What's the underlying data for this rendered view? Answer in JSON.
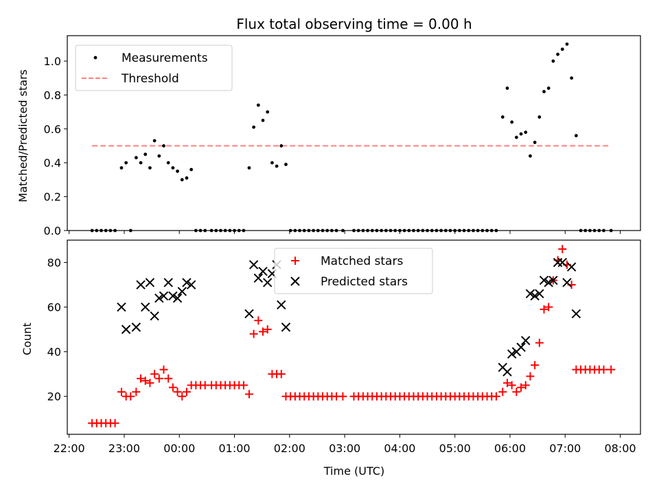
{
  "chart_data": [
    {
      "type": "scatter",
      "title": "Flux total observing time = 0.00 h",
      "ylabel": "Matched/Predicted stars",
      "ylim": [
        0,
        1.15
      ],
      "yticks": [
        0.0,
        0.2,
        0.4,
        0.6,
        0.8,
        1.0
      ],
      "ytick_labels": [
        "0.0",
        "0.2",
        "0.4",
        "0.6",
        "0.8",
        "1.0"
      ],
      "legend_position": "top-left",
      "grid": false,
      "series": [
        {
          "name": "Measurements",
          "color": "#000000",
          "marker": "dot",
          "points": [
            [
              "22:25",
              0
            ],
            [
              "22:30",
              0
            ],
            [
              "22:35",
              0
            ],
            [
              "22:40",
              0
            ],
            [
              "22:45",
              0
            ],
            [
              "22:50",
              0
            ],
            [
              "22:57",
              0.37
            ],
            [
              "23:02",
              0.4
            ],
            [
              "23:07",
              0
            ],
            [
              "23:13",
              0.43
            ],
            [
              "23:18",
              0.4
            ],
            [
              "23:23",
              0.45
            ],
            [
              "23:28",
              0.37
            ],
            [
              "23:33",
              0.53
            ],
            [
              "23:38",
              0.44
            ],
            [
              "23:43",
              0.5
            ],
            [
              "23:48",
              0.4
            ],
            [
              "23:53",
              0.37
            ],
            [
              "23:58",
              0.35
            ],
            [
              "00:03",
              0.3
            ],
            [
              "00:08",
              0.31
            ],
            [
              "00:13",
              0.36
            ],
            [
              "00:18",
              0
            ],
            [
              "00:23",
              0
            ],
            [
              "00:28",
              0
            ],
            [
              "00:35",
              0
            ],
            [
              "00:40",
              0
            ],
            [
              "00:45",
              0
            ],
            [
              "00:50",
              0
            ],
            [
              "00:55",
              0
            ],
            [
              "01:00",
              0
            ],
            [
              "01:05",
              0
            ],
            [
              "01:10",
              0
            ],
            [
              "01:16",
              0.37
            ],
            [
              "01:21",
              0.61
            ],
            [
              "01:26",
              0.74
            ],
            [
              "01:31",
              0.65
            ],
            [
              "01:36",
              0.7
            ],
            [
              "01:41",
              0.4
            ],
            [
              "01:46",
              0.38
            ],
            [
              "01:51",
              0.5
            ],
            [
              "01:56",
              0.39
            ],
            [
              "02:01",
              0
            ],
            [
              "02:06",
              0
            ],
            [
              "02:11",
              0
            ],
            [
              "02:16",
              0
            ],
            [
              "02:21",
              0
            ],
            [
              "02:26",
              0
            ],
            [
              "02:31",
              0
            ],
            [
              "02:36",
              0
            ],
            [
              "02:41",
              0
            ],
            [
              "02:46",
              0
            ],
            [
              "02:51",
              0
            ],
            [
              "02:58",
              0
            ],
            [
              "03:10",
              0
            ],
            [
              "03:15",
              0
            ],
            [
              "03:20",
              0
            ],
            [
              "03:25",
              0
            ],
            [
              "03:30",
              0
            ],
            [
              "03:35",
              0
            ],
            [
              "03:40",
              0
            ],
            [
              "03:45",
              0
            ],
            [
              "03:50",
              0
            ],
            [
              "03:55",
              0
            ],
            [
              "04:00",
              0
            ],
            [
              "04:05",
              0
            ],
            [
              "04:10",
              0
            ],
            [
              "04:15",
              0
            ],
            [
              "04:20",
              0
            ],
            [
              "04:25",
              0
            ],
            [
              "04:30",
              0
            ],
            [
              "04:35",
              0
            ],
            [
              "04:40",
              0
            ],
            [
              "04:45",
              0
            ],
            [
              "04:50",
              0
            ],
            [
              "04:55",
              0
            ],
            [
              "05:00",
              0
            ],
            [
              "05:05",
              0
            ],
            [
              "05:10",
              0
            ],
            [
              "05:15",
              0
            ],
            [
              "05:20",
              0
            ],
            [
              "05:25",
              0
            ],
            [
              "05:30",
              0
            ],
            [
              "05:35",
              0
            ],
            [
              "05:40",
              0
            ],
            [
              "05:45",
              0
            ],
            [
              "05:52",
              0.67
            ],
            [
              "05:57",
              0.84
            ],
            [
              "06:02",
              0.64
            ],
            [
              "06:07",
              0.55
            ],
            [
              "06:12",
              0.57
            ],
            [
              "06:17",
              0.58
            ],
            [
              "06:22",
              0.44
            ],
            [
              "06:27",
              0.52
            ],
            [
              "06:32",
              0.67
            ],
            [
              "06:37",
              0.82
            ],
            [
              "06:42",
              0.84
            ],
            [
              "06:47",
              1.0
            ],
            [
              "06:52",
              1.04
            ],
            [
              "06:57",
              1.07
            ],
            [
              "07:02",
              1.1
            ],
            [
              "07:07",
              0.9
            ],
            [
              "07:12",
              0.56
            ],
            [
              "07:17",
              0
            ],
            [
              "07:22",
              0
            ],
            [
              "07:27",
              0
            ],
            [
              "07:32",
              0
            ],
            [
              "07:37",
              0
            ],
            [
              "07:42",
              0
            ],
            [
              "07:50",
              0
            ]
          ]
        },
        {
          "name": "Threshold",
          "color": "#ff7f7f",
          "style": "dashed",
          "points": [
            [
              "22:25",
              0.5
            ],
            [
              "07:50",
              0.5
            ]
          ]
        }
      ]
    },
    {
      "type": "scatter",
      "ylabel": "Count",
      "xlabel": "Time (UTC)",
      "ylim": [
        3,
        90
      ],
      "yticks": [
        20,
        40,
        60,
        80
      ],
      "ytick_labels": [
        "20",
        "40",
        "60",
        "80"
      ],
      "xlim": [
        "21:58",
        "08:22"
      ],
      "xticks": [
        "22:00",
        "23:00",
        "00:00",
        "01:00",
        "02:00",
        "03:00",
        "04:00",
        "05:00",
        "06:00",
        "07:00",
        "08:00"
      ],
      "legend_position": "top-center",
      "grid": false,
      "series": [
        {
          "name": "Matched stars",
          "color": "#ff0000",
          "marker": "plus",
          "points": [
            [
              "22:25",
              8
            ],
            [
              "22:30",
              8
            ],
            [
              "22:35",
              8
            ],
            [
              "22:40",
              8
            ],
            [
              "22:45",
              8
            ],
            [
              "22:50",
              8
            ],
            [
              "22:57",
              22
            ],
            [
              "23:02",
              20
            ],
            [
              "23:07",
              20
            ],
            [
              "23:13",
              22
            ],
            [
              "23:18",
              28
            ],
            [
              "23:23",
              27
            ],
            [
              "23:28",
              26
            ],
            [
              "23:33",
              30
            ],
            [
              "23:38",
              28
            ],
            [
              "23:43",
              32
            ],
            [
              "23:48",
              28
            ],
            [
              "23:53",
              24
            ],
            [
              "23:58",
              22
            ],
            [
              "00:03",
              20
            ],
            [
              "00:08",
              22
            ],
            [
              "00:13",
              25
            ],
            [
              "00:18",
              25
            ],
            [
              "00:23",
              25
            ],
            [
              "00:28",
              25
            ],
            [
              "00:35",
              25
            ],
            [
              "00:40",
              25
            ],
            [
              "00:45",
              25
            ],
            [
              "00:50",
              25
            ],
            [
              "00:55",
              25
            ],
            [
              "01:00",
              25
            ],
            [
              "01:05",
              25
            ],
            [
              "01:10",
              25
            ],
            [
              "01:16",
              21
            ],
            [
              "01:21",
              48
            ],
            [
              "01:26",
              54
            ],
            [
              "01:31",
              49
            ],
            [
              "01:36",
              50
            ],
            [
              "01:41",
              30
            ],
            [
              "01:46",
              30
            ],
            [
              "01:51",
              30
            ],
            [
              "01:56",
              20
            ],
            [
              "02:01",
              20
            ],
            [
              "02:06",
              20
            ],
            [
              "02:11",
              20
            ],
            [
              "02:16",
              20
            ],
            [
              "02:21",
              20
            ],
            [
              "02:26",
              20
            ],
            [
              "02:31",
              20
            ],
            [
              "02:36",
              20
            ],
            [
              "02:41",
              20
            ],
            [
              "02:46",
              20
            ],
            [
              "02:51",
              20
            ],
            [
              "02:58",
              20
            ],
            [
              "03:10",
              20
            ],
            [
              "03:15",
              20
            ],
            [
              "03:20",
              20
            ],
            [
              "03:25",
              20
            ],
            [
              "03:30",
              20
            ],
            [
              "03:35",
              20
            ],
            [
              "03:40",
              20
            ],
            [
              "03:45",
              20
            ],
            [
              "03:50",
              20
            ],
            [
              "03:55",
              20
            ],
            [
              "04:00",
              20
            ],
            [
              "04:05",
              20
            ],
            [
              "04:10",
              20
            ],
            [
              "04:15",
              20
            ],
            [
              "04:20",
              20
            ],
            [
              "04:25",
              20
            ],
            [
              "04:30",
              20
            ],
            [
              "04:35",
              20
            ],
            [
              "04:40",
              20
            ],
            [
              "04:45",
              20
            ],
            [
              "04:50",
              20
            ],
            [
              "04:55",
              20
            ],
            [
              "05:00",
              20
            ],
            [
              "05:05",
              20
            ],
            [
              "05:10",
              20
            ],
            [
              "05:15",
              20
            ],
            [
              "05:20",
              20
            ],
            [
              "05:25",
              20
            ],
            [
              "05:30",
              20
            ],
            [
              "05:35",
              20
            ],
            [
              "05:40",
              20
            ],
            [
              "05:45",
              20
            ],
            [
              "05:52",
              22
            ],
            [
              "05:57",
              26
            ],
            [
              "06:02",
              25
            ],
            [
              "06:07",
              22
            ],
            [
              "06:12",
              24
            ],
            [
              "06:17",
              25
            ],
            [
              "06:22",
              29
            ],
            [
              "06:27",
              34
            ],
            [
              "06:32",
              44
            ],
            [
              "06:37",
              59
            ],
            [
              "06:42",
              60
            ],
            [
              "06:47",
              72
            ],
            [
              "06:52",
              81
            ],
            [
              "06:57",
              86
            ],
            [
              "07:02",
              79
            ],
            [
              "07:07",
              70
            ],
            [
              "07:12",
              32
            ],
            [
              "07:17",
              32
            ],
            [
              "07:22",
              32
            ],
            [
              "07:27",
              32
            ],
            [
              "07:32",
              32
            ],
            [
              "07:37",
              32
            ],
            [
              "07:42",
              32
            ],
            [
              "07:50",
              32
            ]
          ]
        },
        {
          "name": "Predicted stars",
          "color": "#000000",
          "marker": "x",
          "points": [
            [
              "22:57",
              60
            ],
            [
              "23:02",
              50
            ],
            [
              "23:13",
              51
            ],
            [
              "23:18",
              70
            ],
            [
              "23:23",
              60
            ],
            [
              "23:28",
              71
            ],
            [
              "23:33",
              56
            ],
            [
              "23:38",
              64
            ],
            [
              "23:43",
              65
            ],
            [
              "23:48",
              71
            ],
            [
              "23:53",
              65
            ],
            [
              "23:58",
              64
            ],
            [
              "00:03",
              67
            ],
            [
              "00:08",
              71
            ],
            [
              "00:13",
              70
            ],
            [
              "01:16",
              57
            ],
            [
              "01:21",
              79
            ],
            [
              "01:26",
              73
            ],
            [
              "01:31",
              76
            ],
            [
              "01:36",
              71
            ],
            [
              "01:41",
              75
            ],
            [
              "01:46",
              79
            ],
            [
              "01:51",
              61
            ],
            [
              "01:56",
              51
            ],
            [
              "05:52",
              33
            ],
            [
              "05:57",
              31
            ],
            [
              "06:02",
              39
            ],
            [
              "06:07",
              40
            ],
            [
              "06:12",
              42
            ],
            [
              "06:17",
              45
            ],
            [
              "06:22",
              66
            ],
            [
              "06:27",
              65
            ],
            [
              "06:32",
              66
            ],
            [
              "06:37",
              72
            ],
            [
              "06:42",
              71
            ],
            [
              "06:47",
              72
            ],
            [
              "06:52",
              80
            ],
            [
              "06:57",
              80
            ],
            [
              "07:02",
              71
            ],
            [
              "07:07",
              78
            ],
            [
              "07:12",
              57
            ]
          ]
        }
      ]
    }
  ]
}
